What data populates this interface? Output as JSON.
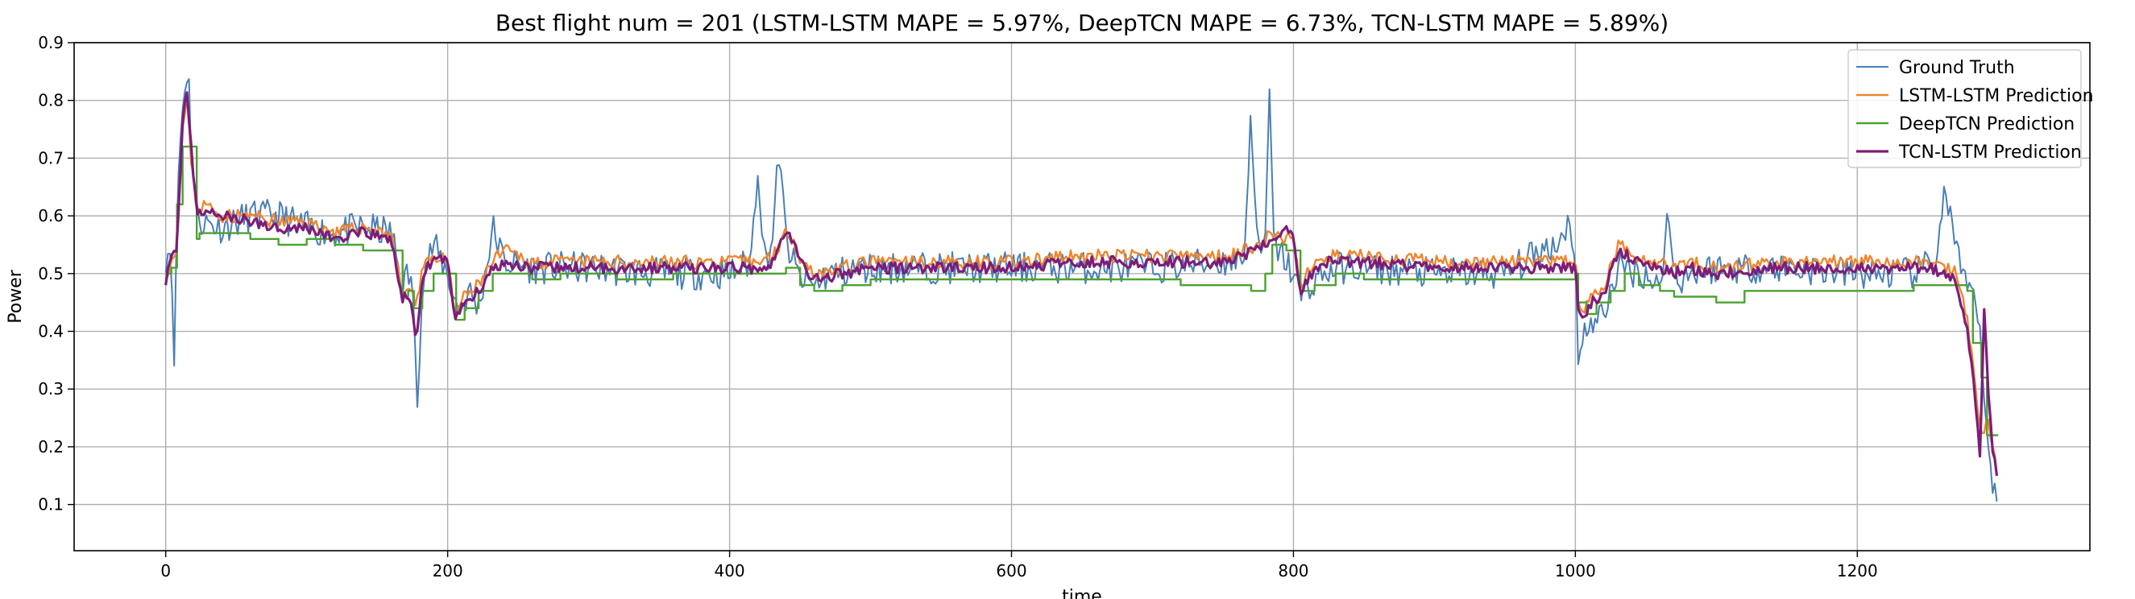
{
  "chart_data": {
    "type": "line",
    "title": "Best flight num = 201 (LSTM-LSTM MAPE = 5.97%, DeepTCN MAPE = 6.73%, TCN-LSTM MAPE = 5.89%)",
    "xlabel": "time",
    "ylabel": "Power",
    "xlim": [
      -65,
      1365
    ],
    "ylim": [
      0.02,
      0.9
    ],
    "xticks": [
      0,
      200,
      400,
      600,
      800,
      1000,
      1200
    ],
    "yticks": [
      0.1,
      0.2,
      0.3,
      0.4,
      0.5,
      0.6,
      0.7,
      0.8,
      0.9
    ],
    "grid": true,
    "legend_position": "top-right",
    "series": [
      {
        "name": "Ground Truth",
        "color": "#4a7fb5",
        "width": 2,
        "noise": 0.028,
        "seed": 11,
        "x": [
          0,
          4,
          6,
          8,
          10,
          13,
          16,
          18,
          22,
          26,
          40,
          60,
          80,
          100,
          120,
          140,
          160,
          168,
          172,
          176,
          178,
          182,
          190,
          200,
          205,
          210,
          215,
          222,
          228,
          232,
          240,
          260,
          300,
          350,
          400,
          415,
          420,
          425,
          430,
          435,
          440,
          445,
          450,
          460,
          470,
          500,
          550,
          600,
          650,
          700,
          750,
          765,
          770,
          775,
          780,
          783,
          786,
          790,
          800,
          805,
          810,
          815,
          830,
          850,
          900,
          950,
          990,
          996,
          1000,
          1002,
          1006,
          1010,
          1015,
          1020,
          1030,
          1050,
          1060,
          1065,
          1070,
          1075,
          1080,
          1100,
          1150,
          1200,
          1240,
          1255,
          1262,
          1266,
          1270,
          1275,
          1280,
          1285,
          1290,
          1295,
          1300
        ],
        "y": [
          0.53,
          0.55,
          0.32,
          0.62,
          0.72,
          0.82,
          0.86,
          0.72,
          0.6,
          0.59,
          0.58,
          0.6,
          0.6,
          0.58,
          0.57,
          0.58,
          0.57,
          0.48,
          0.5,
          0.46,
          0.24,
          0.5,
          0.55,
          0.5,
          0.45,
          0.44,
          0.47,
          0.44,
          0.52,
          0.58,
          0.52,
          0.51,
          0.51,
          0.5,
          0.5,
          0.52,
          0.69,
          0.52,
          0.55,
          0.71,
          0.56,
          0.52,
          0.49,
          0.48,
          0.5,
          0.51,
          0.51,
          0.51,
          0.51,
          0.51,
          0.52,
          0.53,
          0.78,
          0.53,
          0.55,
          0.82,
          0.55,
          0.54,
          0.5,
          0.46,
          0.47,
          0.49,
          0.51,
          0.51,
          0.5,
          0.5,
          0.56,
          0.6,
          0.52,
          0.33,
          0.42,
          0.4,
          0.42,
          0.43,
          0.51,
          0.5,
          0.47,
          0.6,
          0.51,
          0.49,
          0.5,
          0.51,
          0.51,
          0.5,
          0.5,
          0.52,
          0.64,
          0.6,
          0.55,
          0.48,
          0.47,
          0.44,
          0.3,
          0.15,
          0.08
        ]
      },
      {
        "name": "LSTM-LSTM Prediction",
        "color": "#f0852d",
        "width": 2.4,
        "noise": 0.012,
        "seed": 23,
        "x": [
          0,
          4,
          8,
          12,
          15,
          18,
          22,
          28,
          40,
          60,
          80,
          100,
          120,
          140,
          160,
          168,
          172,
          178,
          182,
          190,
          200,
          205,
          212,
          222,
          232,
          240,
          260,
          300,
          350,
          400,
          420,
          430,
          440,
          445,
          450,
          460,
          500,
          550,
          600,
          650,
          700,
          750,
          775,
          785,
          795,
          800,
          805,
          810,
          820,
          850,
          900,
          950,
          1000,
          1002,
          1006,
          1012,
          1020,
          1030,
          1045,
          1060,
          1070,
          1080,
          1100,
          1150,
          1200,
          1250,
          1270,
          1278,
          1283,
          1288,
          1292,
          1296,
          1300
        ],
        "y": [
          0.5,
          0.52,
          0.55,
          0.75,
          0.8,
          0.7,
          0.61,
          0.62,
          0.6,
          0.6,
          0.59,
          0.59,
          0.57,
          0.58,
          0.57,
          0.46,
          0.48,
          0.44,
          0.52,
          0.53,
          0.52,
          0.43,
          0.46,
          0.48,
          0.52,
          0.54,
          0.52,
          0.52,
          0.52,
          0.52,
          0.52,
          0.53,
          0.57,
          0.56,
          0.53,
          0.5,
          0.52,
          0.52,
          0.52,
          0.53,
          0.53,
          0.53,
          0.55,
          0.57,
          0.56,
          0.56,
          0.47,
          0.5,
          0.53,
          0.53,
          0.52,
          0.52,
          0.52,
          0.45,
          0.44,
          0.46,
          0.47,
          0.55,
          0.53,
          0.52,
          0.51,
          0.52,
          0.51,
          0.52,
          0.52,
          0.52,
          0.5,
          0.42,
          0.32,
          0.22,
          0.25,
          0.2,
          0.14
        ]
      },
      {
        "name": "DeepTCN Prediction",
        "color": "#4ca230",
        "width": 2.4,
        "noise": 0,
        "seed": 0,
        "steps": true,
        "x": [
          0,
          4,
          8,
          12,
          14,
          22,
          24,
          40,
          60,
          80,
          100,
          120,
          140,
          160,
          168,
          172,
          176,
          182,
          190,
          200,
          206,
          212,
          222,
          232,
          240,
          260,
          280,
          300,
          320,
          340,
          360,
          400,
          420,
          440,
          450,
          460,
          480,
          500,
          550,
          600,
          650,
          700,
          720,
          750,
          770,
          780,
          785,
          795,
          800,
          805,
          815,
          830,
          850,
          900,
          950,
          1000,
          1002,
          1008,
          1015,
          1025,
          1035,
          1045,
          1060,
          1070,
          1080,
          1100,
          1120,
          1150,
          1170,
          1200,
          1220,
          1240,
          1260,
          1278,
          1282,
          1288,
          1292,
          1300
        ],
        "y": [
          0.5,
          0.51,
          0.62,
          0.72,
          0.72,
          0.56,
          0.57,
          0.57,
          0.56,
          0.55,
          0.56,
          0.55,
          0.54,
          0.54,
          0.46,
          0.47,
          0.44,
          0.47,
          0.5,
          0.5,
          0.42,
          0.44,
          0.47,
          0.5,
          0.5,
          0.49,
          0.5,
          0.5,
          0.49,
          0.49,
          0.5,
          0.5,
          0.5,
          0.51,
          0.48,
          0.47,
          0.48,
          0.49,
          0.49,
          0.49,
          0.49,
          0.49,
          0.48,
          0.48,
          0.47,
          0.5,
          0.55,
          0.54,
          0.54,
          0.47,
          0.48,
          0.5,
          0.49,
          0.49,
          0.49,
          0.5,
          0.45,
          0.43,
          0.45,
          0.47,
          0.5,
          0.48,
          0.47,
          0.46,
          0.46,
          0.45,
          0.47,
          0.47,
          0.47,
          0.47,
          0.47,
          0.48,
          0.48,
          0.47,
          0.38,
          0.32,
          0.22,
          0.22
        ]
      },
      {
        "name": "TCN-LSTM Prediction",
        "color": "#7c1d79",
        "width": 3.2,
        "noise": 0.01,
        "seed": 37,
        "x": [
          0,
          4,
          8,
          12,
          15,
          18,
          22,
          28,
          40,
          60,
          80,
          100,
          120,
          140,
          160,
          168,
          172,
          178,
          182,
          190,
          200,
          205,
          212,
          222,
          232,
          240,
          260,
          300,
          350,
          400,
          420,
          430,
          440,
          445,
          450,
          460,
          500,
          550,
          600,
          650,
          700,
          750,
          775,
          785,
          795,
          800,
          805,
          810,
          820,
          850,
          900,
          950,
          1000,
          1002,
          1006,
          1012,
          1020,
          1030,
          1045,
          1060,
          1070,
          1080,
          1100,
          1150,
          1200,
          1250,
          1270,
          1278,
          1283,
          1287,
          1290,
          1293,
          1296,
          1300
        ],
        "y": [
          0.49,
          0.52,
          0.55,
          0.77,
          0.82,
          0.72,
          0.6,
          0.61,
          0.6,
          0.59,
          0.58,
          0.58,
          0.56,
          0.57,
          0.56,
          0.45,
          0.47,
          0.38,
          0.5,
          0.52,
          0.53,
          0.42,
          0.45,
          0.47,
          0.51,
          0.52,
          0.51,
          0.51,
          0.51,
          0.51,
          0.51,
          0.52,
          0.57,
          0.56,
          0.52,
          0.49,
          0.51,
          0.51,
          0.51,
          0.52,
          0.52,
          0.52,
          0.54,
          0.56,
          0.58,
          0.56,
          0.46,
          0.49,
          0.52,
          0.52,
          0.51,
          0.51,
          0.51,
          0.44,
          0.43,
          0.45,
          0.46,
          0.54,
          0.52,
          0.51,
          0.5,
          0.51,
          0.5,
          0.51,
          0.51,
          0.51,
          0.49,
          0.4,
          0.3,
          0.18,
          0.44,
          0.3,
          0.2,
          0.12
        ]
      }
    ]
  }
}
